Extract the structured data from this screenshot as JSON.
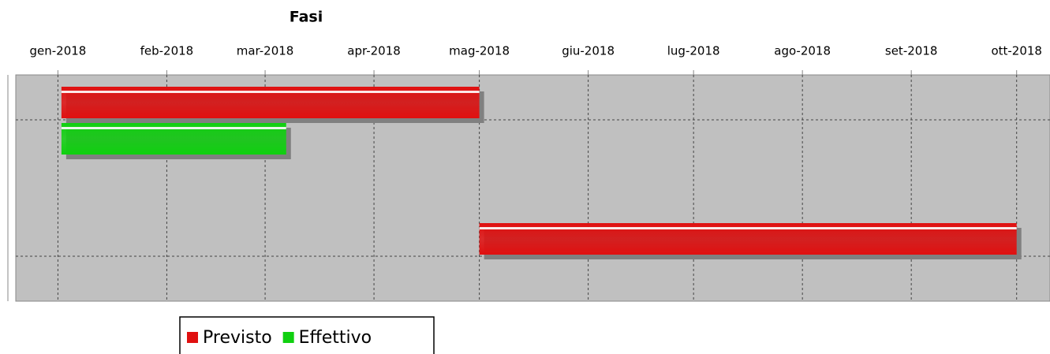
{
  "chart_data": {
    "type": "gantt",
    "title": "Fasi",
    "categories": [
      null,
      null
    ],
    "series": [
      {
        "name": "Previsto",
        "color": "#e01010",
        "values": [
          [
            1,
            120
          ],
          [
            120,
            273
          ]
        ]
      },
      {
        "name": "Effettivo",
        "color": "#10d010",
        "values": [
          [
            1,
            65
          ],
          null
        ]
      }
    ],
    "xlim": [
      -12,
      282.5
    ],
    "xticks": [
      {
        "value": 0,
        "label": "gen-2018"
      },
      {
        "value": 31,
        "label": "feb-2018"
      },
      {
        "value": 59,
        "label": "mar-2018"
      },
      {
        "value": 90,
        "label": "apr-2018"
      },
      {
        "value": 120,
        "label": "mag-2018"
      },
      {
        "value": 151,
        "label": "giu-2018"
      },
      {
        "value": 181,
        "label": "lug-2018"
      },
      {
        "value": 212,
        "label": "ago-2018"
      },
      {
        "value": 243,
        "label": "set-2018"
      },
      {
        "value": 273,
        "label": "ott-2018"
      }
    ],
    "grid": true
  }
}
